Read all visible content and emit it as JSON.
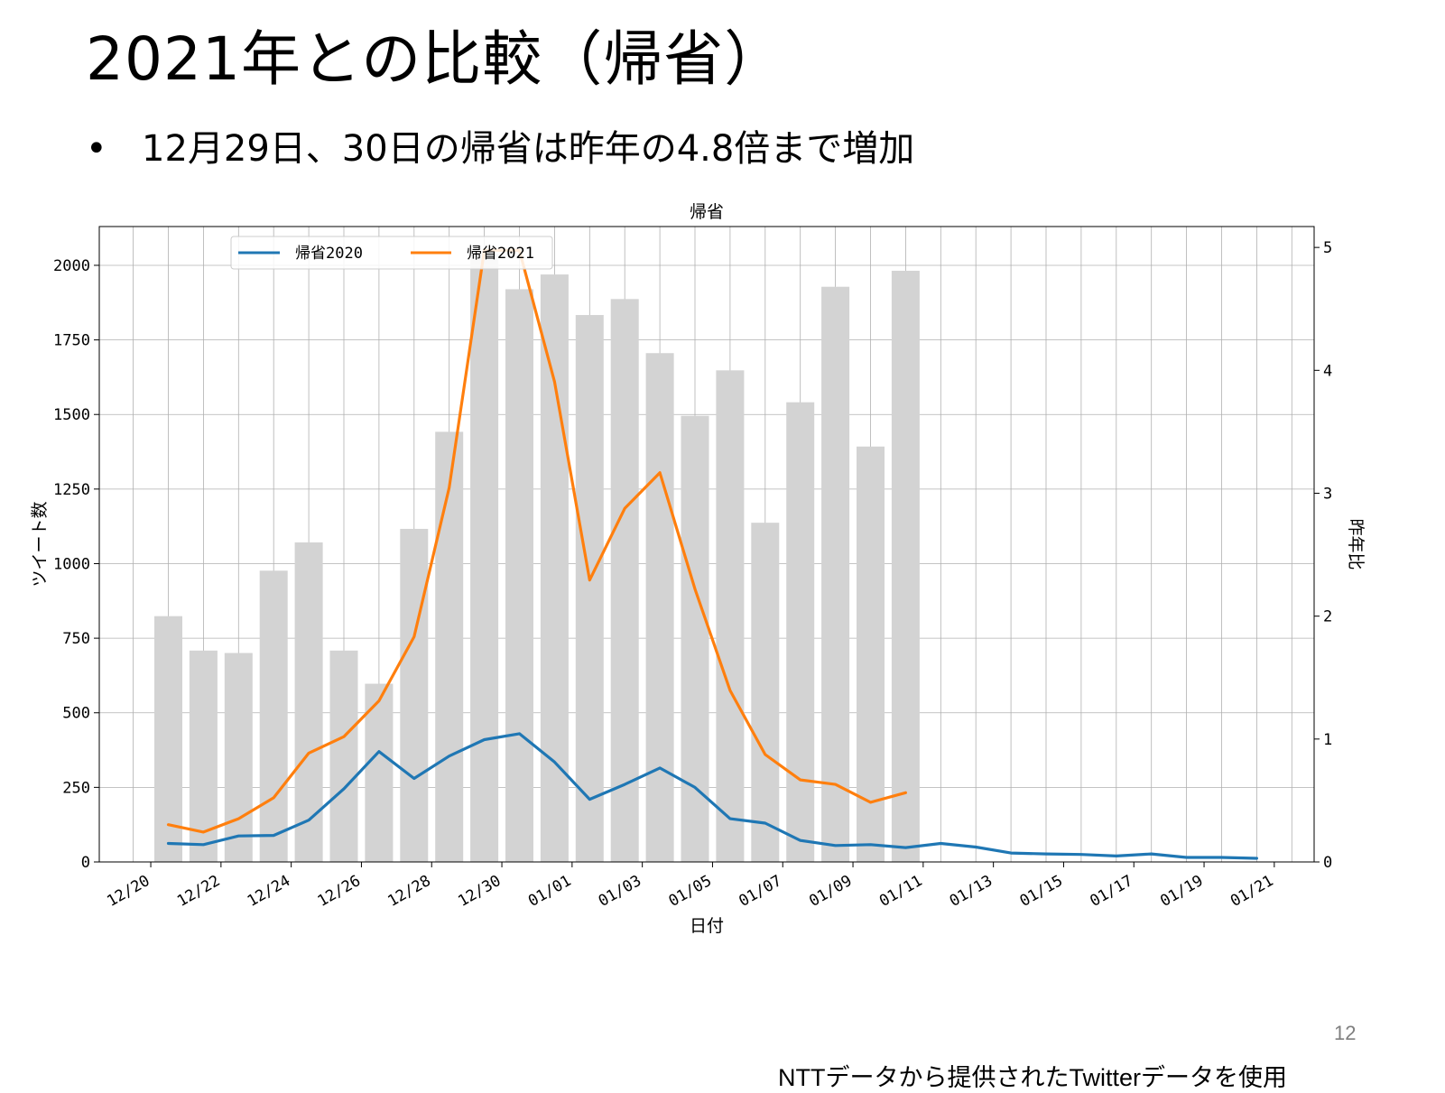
{
  "slide": {
    "title": "2021年との比較（帰省）",
    "bullet_symbol": "•",
    "bullet_text": "12月29日、30日の帰省は昨年の4.8倍まで増加",
    "page_number": "12",
    "source_note": "NTTデータから提供されたTwitterデータを使用"
  },
  "chart_data": {
    "type": "bar+line",
    "title": "帰省",
    "xlabel": "日付",
    "ylabel_left": "ツイート数",
    "ylabel_right": "昨年比",
    "x_tick_labels": [
      "12/20",
      "12/22",
      "12/24",
      "12/26",
      "12/28",
      "12/30",
      "01/01",
      "01/03",
      "01/05",
      "01/07",
      "01/09",
      "01/11",
      "01/13",
      "01/15",
      "01/17",
      "01/19",
      "01/21"
    ],
    "y_left_ticks": [
      "0",
      "250",
      "500",
      "750",
      "1000",
      "1250",
      "1500",
      "1750",
      "2000"
    ],
    "y_right_ticks": [
      "0",
      "1",
      "2",
      "3",
      "4",
      "5"
    ],
    "ylim_left": [
      0,
      2130
    ],
    "ylim_right": [
      0,
      5.17
    ],
    "grid": true,
    "legend_position": "top-left",
    "x_dates": [
      "12/20",
      "12/21",
      "12/22",
      "12/23",
      "12/24",
      "12/25",
      "12/26",
      "12/27",
      "12/28",
      "12/29",
      "12/30",
      "12/31",
      "01/01",
      "01/02",
      "01/03",
      "01/04",
      "01/05",
      "01/06",
      "01/07",
      "01/08",
      "01/09",
      "01/10",
      "01/11",
      "01/12",
      "01/13",
      "01/14",
      "01/15",
      "01/16",
      "01/17",
      "01/18",
      "01/19",
      "01/20"
    ],
    "bars": {
      "axis": "right",
      "color": "#d3d3d3",
      "values": [
        2.0,
        1.72,
        1.7,
        2.37,
        2.6,
        1.72,
        1.45,
        2.71,
        3.5,
        4.95,
        4.66,
        4.78,
        4.45,
        4.58,
        4.14,
        3.63,
        4.0,
        2.76,
        3.74,
        4.68,
        3.38,
        4.81
      ]
    },
    "series": [
      {
        "name": "帰省2020",
        "axis": "left",
        "color": "#1f77b4",
        "values": [
          62,
          58,
          87,
          89,
          140,
          245,
          370,
          280,
          355,
          410,
          430,
          335,
          210,
          260,
          315,
          250,
          145,
          130,
          72,
          55,
          58,
          48,
          62,
          50,
          30,
          27,
          25,
          20,
          27,
          15,
          15,
          12
        ]
      },
      {
        "name": "帰省2021",
        "axis": "left",
        "color": "#ff7f0e",
        "values": [
          125,
          100,
          145,
          215,
          365,
          420,
          540,
          755,
          1255,
          2050,
          2050,
          1610,
          945,
          1185,
          1305,
          915,
          575,
          360,
          275,
          260,
          200,
          232
        ]
      }
    ]
  }
}
